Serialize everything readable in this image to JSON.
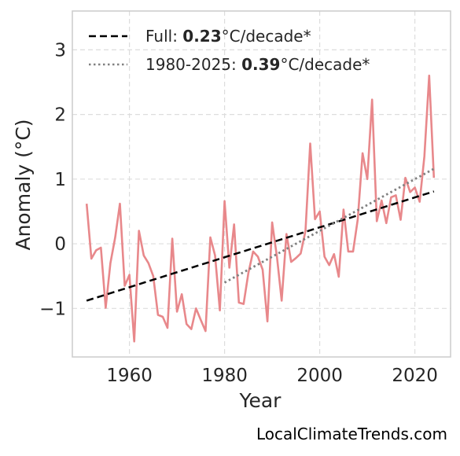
{
  "chart_data": {
    "type": "line",
    "xlabel": "Year",
    "ylabel": "Anomaly (°C)",
    "xlim": [
      1948,
      2027.5
    ],
    "ylim": [
      -1.75,
      3.6
    ],
    "xticks": [
      1960,
      1980,
      2000,
      2020
    ],
    "yticks": [
      -1,
      0,
      1,
      2,
      3
    ],
    "ytick_labels": [
      "−1",
      "0",
      "1",
      "2",
      "3"
    ],
    "grid": true,
    "legend_position": "upper-left",
    "colors": {
      "anomaly": "#e8888b",
      "full_trend": "#000000",
      "recent_trend": "#808080",
      "grid": "#dddddd",
      "frame": "#cccccc"
    },
    "series": [
      {
        "x": [
          1951,
          1952,
          1953,
          1954,
          1955,
          1956,
          1957,
          1958,
          1959,
          1960,
          1961,
          1962,
          1963,
          1964,
          1965,
          1966,
          1967,
          1968,
          1969,
          1970,
          1971,
          1972,
          1973,
          1974,
          1975,
          1976,
          1977,
          1978,
          1979,
          1980,
          1981,
          1982,
          1983,
          1984,
          1985,
          1986,
          1987,
          1988,
          1989,
          1990,
          1991,
          1992,
          1993,
          1994,
          1995,
          1996,
          1997,
          1998,
          1999,
          2000,
          2001,
          2002,
          2003,
          2004,
          2005,
          2006,
          2007,
          2008,
          2009,
          2010,
          2011,
          2012,
          2013,
          2014,
          2015,
          2016,
          2017,
          2018,
          2019,
          2020,
          2021,
          2022,
          2023,
          2024
        ],
        "values": [
          0.62,
          -0.23,
          -0.1,
          -0.06,
          -0.99,
          -0.3,
          0.1,
          0.62,
          -0.65,
          -0.48,
          -1.51,
          0.2,
          -0.18,
          -0.3,
          -0.5,
          -1.1,
          -1.13,
          -1.3,
          0.08,
          -1.05,
          -0.78,
          -1.24,
          -1.32,
          -1.0,
          -1.18,
          -1.35,
          0.1,
          -0.18,
          -1.03,
          0.66,
          -0.37,
          0.3,
          -0.91,
          -0.93,
          -0.45,
          -0.12,
          -0.2,
          -0.4,
          -1.2,
          0.33,
          -0.2,
          -0.88,
          0.15,
          -0.28,
          -0.22,
          -0.15,
          0.2,
          1.55,
          0.38,
          0.5,
          -0.2,
          -0.33,
          -0.16,
          -0.51,
          0.53,
          -0.12,
          -0.12,
          0.38,
          1.4,
          1.0,
          2.23,
          0.35,
          0.67,
          0.32,
          0.72,
          0.75,
          0.37,
          1.02,
          0.8,
          0.87,
          0.65,
          1.35,
          2.6,
          1.02
        ]
      }
    ],
    "trends": [
      {
        "label": "Full",
        "rate": "0.23",
        "unit": "°C/decade*",
        "x": [
          1951,
          2024
        ],
        "y": [
          -0.88,
          0.81
        ]
      },
      {
        "label": "1980-2025",
        "rate": "0.39",
        "unit": "°C/decade*",
        "x": [
          1980,
          2024
        ],
        "y": [
          -0.6,
          1.16
        ]
      }
    ]
  },
  "legend": {
    "full_prefix": "Full: ",
    "full_rate": "0.23",
    "full_unit": "°C/decade*",
    "recent_prefix": "1980-2025: ",
    "recent_rate": "0.39",
    "recent_unit": "°C/decade*"
  },
  "credit": "LocalClimateTrends.com"
}
